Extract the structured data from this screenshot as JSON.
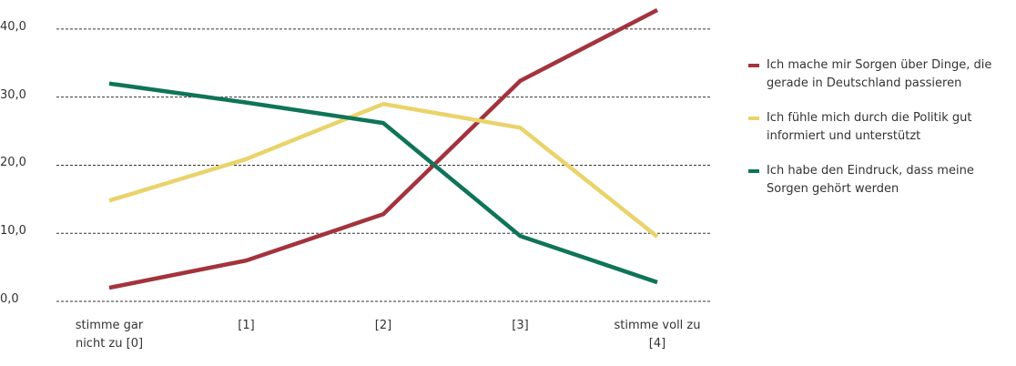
{
  "chart_data": {
    "type": "line",
    "categories": [
      "stimme gar nicht zu [0]",
      "[1]",
      "[2]",
      "[3]",
      "stimme voll zu [4]"
    ],
    "series": [
      {
        "name": "Ich mache mir Sorgen über Dinge, die gerade in Deutschland passieren",
        "color": "#a3333d",
        "values": [
          2.0,
          6.0,
          12.8,
          32.4,
          42.8
        ]
      },
      {
        "name": "Ich fühle mich durch die Politik gut informiert und unterstützt",
        "color": "#ead36a",
        "values": [
          14.8,
          20.9,
          29.0,
          25.5,
          9.5
        ]
      },
      {
        "name": "Ich habe den Eindruck, dass meine Sorgen gehört werden",
        "color": "#0f7458",
        "values": [
          32.0,
          29.2,
          26.2,
          9.6,
          2.8
        ]
      }
    ],
    "ylim": [
      0,
      44
    ],
    "yticks": [
      {
        "value": 0,
        "label": "0,0"
      },
      {
        "value": 10,
        "label": "10,0"
      },
      {
        "value": 20,
        "label": "20,0"
      },
      {
        "value": 30,
        "label": "30,0"
      },
      {
        "value": 40,
        "label": "40,0"
      }
    ],
    "grid": true,
    "legend": "right"
  }
}
